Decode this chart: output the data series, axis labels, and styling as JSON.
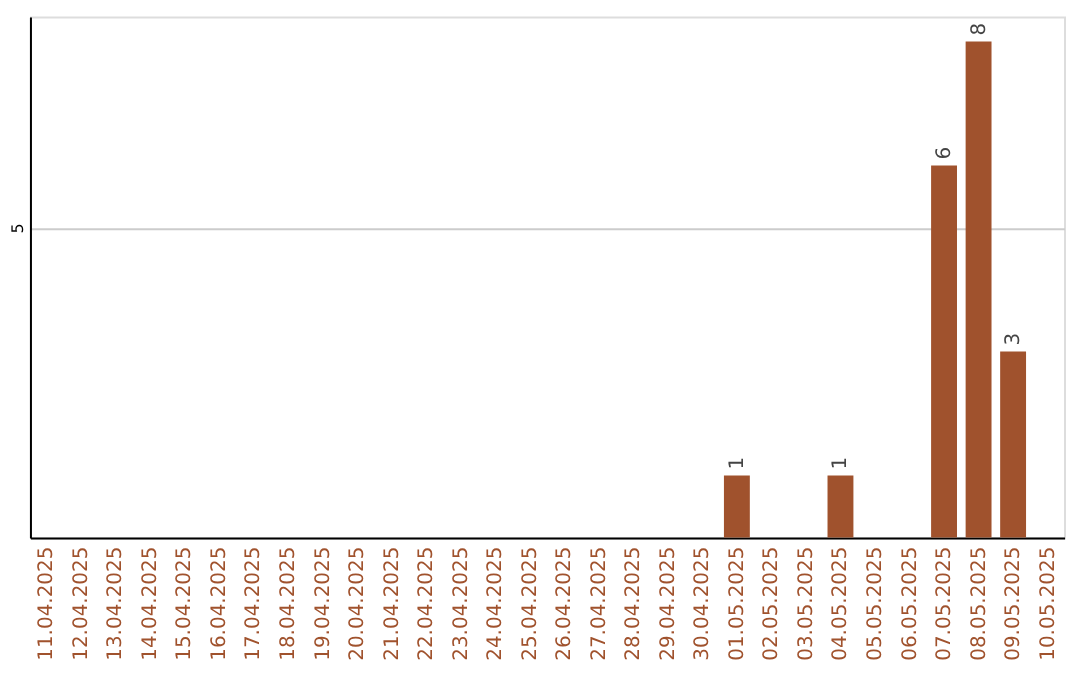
{
  "chart_data": {
    "type": "bar",
    "categories": [
      "11.04.2025",
      "12.04.2025",
      "13.04.2025",
      "14.04.2025",
      "15.04.2025",
      "16.04.2025",
      "17.04.2025",
      "18.04.2025",
      "19.04.2025",
      "20.04.2025",
      "21.04.2025",
      "22.04.2025",
      "23.04.2025",
      "24.04.2025",
      "25.04.2025",
      "26.04.2025",
      "27.04.2025",
      "28.04.2025",
      "29.04.2025",
      "30.04.2025",
      "01.05.2025",
      "02.05.2025",
      "03.05.2025",
      "04.05.2025",
      "05.05.2025",
      "06.05.2025",
      "07.05.2025",
      "08.05.2025",
      "09.05.2025",
      "10.05.2025"
    ],
    "values": [
      null,
      null,
      null,
      null,
      null,
      null,
      null,
      null,
      null,
      null,
      null,
      null,
      null,
      null,
      null,
      null,
      null,
      null,
      null,
      null,
      1,
      null,
      null,
      1,
      null,
      null,
      6,
      8,
      3,
      null
    ],
    "color": "#a0522d",
    "ylim": [
      0,
      8.4
    ],
    "yticks": [
      5
    ],
    "grid": "y",
    "data_labels": true
  }
}
